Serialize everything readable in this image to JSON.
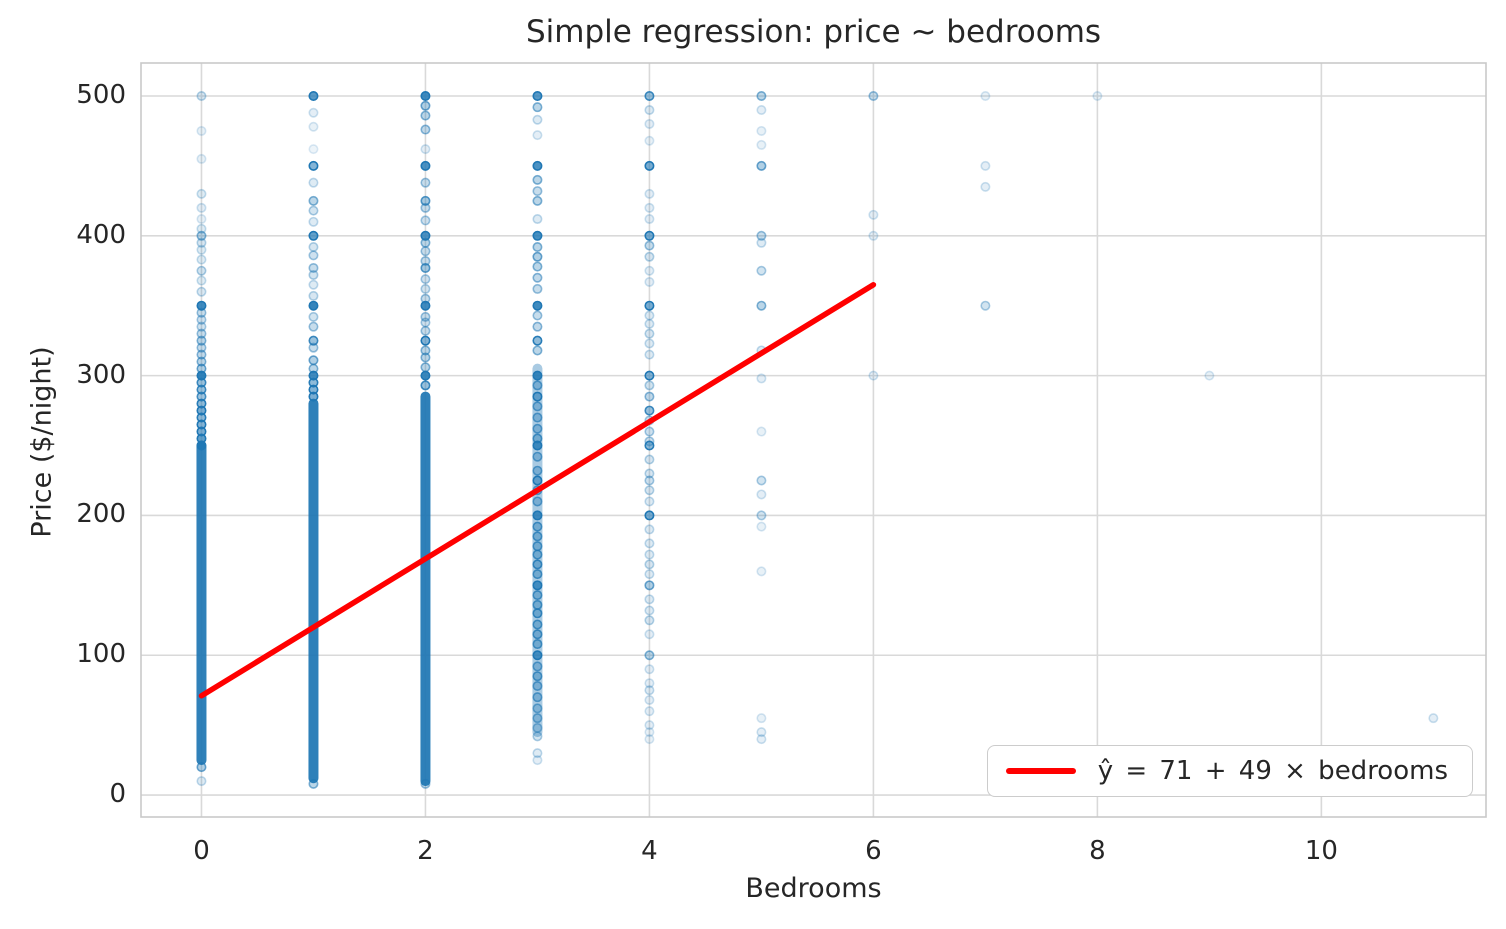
{
  "chart_data": {
    "type": "scatter",
    "title": "Simple regression: price ~ bedrooms",
    "xlabel": "Bedrooms",
    "ylabel": "Price ($/night)",
    "x_ticks": [
      0,
      2,
      4,
      6,
      8,
      10
    ],
    "y_ticks": [
      0,
      100,
      200,
      300,
      400,
      500
    ],
    "xlim": [
      -0.54,
      11.47
    ],
    "ylim": [
      -15.7,
      523.6
    ],
    "grid": true,
    "grid_color": "#d9d9d9",
    "spine_color": "#c9c9c9",
    "background": "#ffffff",
    "text_color": "#262626",
    "marker_color": "#1f77b4",
    "regression": {
      "intercept": 71,
      "slope": 49,
      "x_start": 0,
      "x_end": 6,
      "color": "#ff0000"
    },
    "legend": {
      "position": "lower right",
      "label": "ŷ = 71 + 49 × bedrooms"
    },
    "dense_bands": [
      {
        "x": 0,
        "from": 25,
        "to": 250,
        "alpha": 0.92
      },
      {
        "x": 1,
        "from": 12,
        "to": 280,
        "alpha": 0.93
      },
      {
        "x": 2,
        "from": 10,
        "to": 285,
        "alpha": 0.93
      },
      {
        "x": 3,
        "from": 45,
        "to": 305,
        "alpha": 0.38
      }
    ],
    "points": [
      [
        0,
        500,
        0.18
      ],
      [
        0,
        475,
        0.1
      ],
      [
        0,
        455,
        0.1
      ],
      [
        0,
        430,
        0.14
      ],
      [
        0,
        420,
        0.12
      ],
      [
        0,
        412,
        0.1
      ],
      [
        0,
        405,
        0.14
      ],
      [
        0,
        400,
        0.3
      ],
      [
        0,
        395,
        0.18
      ],
      [
        0,
        390,
        0.14
      ],
      [
        0,
        383,
        0.14
      ],
      [
        0,
        375,
        0.2
      ],
      [
        0,
        368,
        0.14
      ],
      [
        0,
        360,
        0.16
      ],
      [
        0,
        350,
        0.85
      ],
      [
        0,
        345,
        0.25
      ],
      [
        0,
        340,
        0.22
      ],
      [
        0,
        335,
        0.2
      ],
      [
        0,
        330,
        0.25
      ],
      [
        0,
        325,
        0.3
      ],
      [
        0,
        320,
        0.25
      ],
      [
        0,
        315,
        0.28
      ],
      [
        0,
        310,
        0.3
      ],
      [
        0,
        305,
        0.35
      ],
      [
        0,
        300,
        0.92
      ],
      [
        0,
        295,
        0.45
      ],
      [
        0,
        290,
        0.45
      ],
      [
        0,
        285,
        0.42
      ],
      [
        0,
        280,
        0.5
      ],
      [
        0,
        275,
        0.6
      ],
      [
        0,
        270,
        0.5
      ],
      [
        0,
        265,
        0.55
      ],
      [
        0,
        260,
        0.6
      ],
      [
        0,
        255,
        0.7
      ],
      [
        0,
        250,
        0.95
      ],
      [
        0,
        20,
        0.35
      ],
      [
        0,
        10,
        0.15
      ],
      [
        1,
        500,
        0.75
      ],
      [
        1,
        488,
        0.12
      ],
      [
        1,
        478,
        0.1
      ],
      [
        1,
        462,
        0.08
      ],
      [
        1,
        450,
        0.55
      ],
      [
        1,
        438,
        0.15
      ],
      [
        1,
        425,
        0.3
      ],
      [
        1,
        418,
        0.2
      ],
      [
        1,
        410,
        0.15
      ],
      [
        1,
        400,
        0.7
      ],
      [
        1,
        392,
        0.18
      ],
      [
        1,
        386,
        0.22
      ],
      [
        1,
        377,
        0.25
      ],
      [
        1,
        372,
        0.2
      ],
      [
        1,
        365,
        0.15
      ],
      [
        1,
        357,
        0.18
      ],
      [
        1,
        350,
        0.9
      ],
      [
        1,
        342,
        0.2
      ],
      [
        1,
        335,
        0.25
      ],
      [
        1,
        325,
        0.45
      ],
      [
        1,
        320,
        0.25
      ],
      [
        1,
        311,
        0.35
      ],
      [
        1,
        305,
        0.3
      ],
      [
        1,
        300,
        0.85
      ],
      [
        1,
        295,
        0.5
      ],
      [
        1,
        290,
        0.55
      ],
      [
        1,
        285,
        0.6
      ],
      [
        1,
        8,
        0.3
      ],
      [
        2,
        500,
        0.85
      ],
      [
        2,
        493,
        0.35
      ],
      [
        2,
        486,
        0.3
      ],
      [
        2,
        476,
        0.28
      ],
      [
        2,
        462,
        0.12
      ],
      [
        2,
        450,
        0.8
      ],
      [
        2,
        438,
        0.25
      ],
      [
        2,
        425,
        0.4
      ],
      [
        2,
        420,
        0.25
      ],
      [
        2,
        411,
        0.22
      ],
      [
        2,
        400,
        0.8
      ],
      [
        2,
        395,
        0.3
      ],
      [
        2,
        389,
        0.25
      ],
      [
        2,
        382,
        0.25
      ],
      [
        2,
        377,
        0.4
      ],
      [
        2,
        369,
        0.22
      ],
      [
        2,
        362,
        0.2
      ],
      [
        2,
        355,
        0.25
      ],
      [
        2,
        350,
        0.85
      ],
      [
        2,
        342,
        0.25
      ],
      [
        2,
        338,
        0.22
      ],
      [
        2,
        332,
        0.25
      ],
      [
        2,
        325,
        0.55
      ],
      [
        2,
        318,
        0.3
      ],
      [
        2,
        313,
        0.3
      ],
      [
        2,
        306,
        0.3
      ],
      [
        2,
        300,
        0.88
      ],
      [
        2,
        293,
        0.45
      ],
      [
        2,
        8,
        0.25
      ],
      [
        3,
        500,
        0.75
      ],
      [
        3,
        492,
        0.3
      ],
      [
        3,
        483,
        0.15
      ],
      [
        3,
        472,
        0.12
      ],
      [
        3,
        450,
        0.8
      ],
      [
        3,
        440,
        0.3
      ],
      [
        3,
        432,
        0.25
      ],
      [
        3,
        425,
        0.3
      ],
      [
        3,
        412,
        0.15
      ],
      [
        3,
        400,
        0.82
      ],
      [
        3,
        392,
        0.3
      ],
      [
        3,
        385,
        0.35
      ],
      [
        3,
        378,
        0.3
      ],
      [
        3,
        370,
        0.28
      ],
      [
        3,
        362,
        0.25
      ],
      [
        3,
        350,
        0.85
      ],
      [
        3,
        343,
        0.25
      ],
      [
        3,
        335,
        0.28
      ],
      [
        3,
        325,
        0.5
      ],
      [
        3,
        318,
        0.3
      ],
      [
        3,
        300,
        0.85
      ],
      [
        3,
        293,
        0.35
      ],
      [
        3,
        285,
        0.55
      ],
      [
        3,
        278,
        0.35
      ],
      [
        3,
        270,
        0.35
      ],
      [
        3,
        262,
        0.35
      ],
      [
        3,
        255,
        0.4
      ],
      [
        3,
        250,
        0.8
      ],
      [
        3,
        242,
        0.35
      ],
      [
        3,
        232,
        0.35
      ],
      [
        3,
        225,
        0.55
      ],
      [
        3,
        218,
        0.35
      ],
      [
        3,
        210,
        0.35
      ],
      [
        3,
        200,
        0.8
      ],
      [
        3,
        192,
        0.4
      ],
      [
        3,
        185,
        0.4
      ],
      [
        3,
        178,
        0.4
      ],
      [
        3,
        172,
        0.4
      ],
      [
        3,
        165,
        0.45
      ],
      [
        3,
        158,
        0.4
      ],
      [
        3,
        150,
        0.75
      ],
      [
        3,
        143,
        0.4
      ],
      [
        3,
        136,
        0.4
      ],
      [
        3,
        130,
        0.45
      ],
      [
        3,
        122,
        0.4
      ],
      [
        3,
        115,
        0.42
      ],
      [
        3,
        108,
        0.4
      ],
      [
        3,
        100,
        0.75
      ],
      [
        3,
        92,
        0.35
      ],
      [
        3,
        85,
        0.4
      ],
      [
        3,
        78,
        0.35
      ],
      [
        3,
        70,
        0.35
      ],
      [
        3,
        62,
        0.3
      ],
      [
        3,
        55,
        0.3
      ],
      [
        3,
        48,
        0.25
      ],
      [
        3,
        42,
        0.2
      ],
      [
        3,
        30,
        0.15
      ],
      [
        3,
        25,
        0.12
      ],
      [
        4,
        500,
        0.45
      ],
      [
        4,
        490,
        0.15
      ],
      [
        4,
        480,
        0.12
      ],
      [
        4,
        468,
        0.1
      ],
      [
        4,
        450,
        0.6
      ],
      [
        4,
        430,
        0.12
      ],
      [
        4,
        420,
        0.12
      ],
      [
        4,
        412,
        0.12
      ],
      [
        4,
        400,
        0.6
      ],
      [
        4,
        393,
        0.25
      ],
      [
        4,
        385,
        0.18
      ],
      [
        4,
        375,
        0.12
      ],
      [
        4,
        367,
        0.12
      ],
      [
        4,
        350,
        0.6
      ],
      [
        4,
        343,
        0.15
      ],
      [
        4,
        337,
        0.15
      ],
      [
        4,
        330,
        0.18
      ],
      [
        4,
        323,
        0.15
      ],
      [
        4,
        315,
        0.15
      ],
      [
        4,
        300,
        0.55
      ],
      [
        4,
        293,
        0.2
      ],
      [
        4,
        285,
        0.28
      ],
      [
        4,
        275,
        0.45
      ],
      [
        4,
        268,
        0.22
      ],
      [
        4,
        260,
        0.22
      ],
      [
        4,
        253,
        0.22
      ],
      [
        4,
        250,
        0.5
      ],
      [
        4,
        240,
        0.18
      ],
      [
        4,
        230,
        0.18
      ],
      [
        4,
        225,
        0.22
      ],
      [
        4,
        218,
        0.18
      ],
      [
        4,
        210,
        0.15
      ],
      [
        4,
        200,
        0.6
      ],
      [
        4,
        190,
        0.15
      ],
      [
        4,
        180,
        0.15
      ],
      [
        4,
        172,
        0.15
      ],
      [
        4,
        165,
        0.18
      ],
      [
        4,
        158,
        0.15
      ],
      [
        4,
        150,
        0.35
      ],
      [
        4,
        140,
        0.15
      ],
      [
        4,
        132,
        0.15
      ],
      [
        4,
        125,
        0.18
      ],
      [
        4,
        115,
        0.12
      ],
      [
        4,
        100,
        0.3
      ],
      [
        4,
        90,
        0.12
      ],
      [
        4,
        80,
        0.12
      ],
      [
        4,
        75,
        0.15
      ],
      [
        4,
        68,
        0.12
      ],
      [
        4,
        60,
        0.12
      ],
      [
        4,
        50,
        0.12
      ],
      [
        4,
        45,
        0.1
      ],
      [
        4,
        40,
        0.1
      ],
      [
        5,
        500,
        0.3
      ],
      [
        5,
        490,
        0.12
      ],
      [
        5,
        475,
        0.1
      ],
      [
        5,
        465,
        0.1
      ],
      [
        5,
        450,
        0.35
      ],
      [
        5,
        400,
        0.25
      ],
      [
        5,
        395,
        0.15
      ],
      [
        5,
        375,
        0.2
      ],
      [
        5,
        350,
        0.3
      ],
      [
        5,
        318,
        0.15
      ],
      [
        5,
        298,
        0.12
      ],
      [
        5,
        260,
        0.1
      ],
      [
        5,
        225,
        0.2
      ],
      [
        5,
        215,
        0.12
      ],
      [
        5,
        200,
        0.2
      ],
      [
        5,
        192,
        0.1
      ],
      [
        5,
        160,
        0.1
      ],
      [
        5,
        55,
        0.1
      ],
      [
        5,
        45,
        0.12
      ],
      [
        5,
        40,
        0.12
      ],
      [
        6,
        500,
        0.25
      ],
      [
        6,
        415,
        0.12
      ],
      [
        6,
        400,
        0.12
      ],
      [
        6,
        300,
        0.12
      ],
      [
        7,
        500,
        0.1
      ],
      [
        7,
        450,
        0.12
      ],
      [
        7,
        435,
        0.12
      ],
      [
        7,
        350,
        0.2
      ],
      [
        8,
        500,
        0.1
      ],
      [
        9,
        300,
        0.1
      ],
      [
        11,
        55,
        0.12
      ]
    ]
  }
}
